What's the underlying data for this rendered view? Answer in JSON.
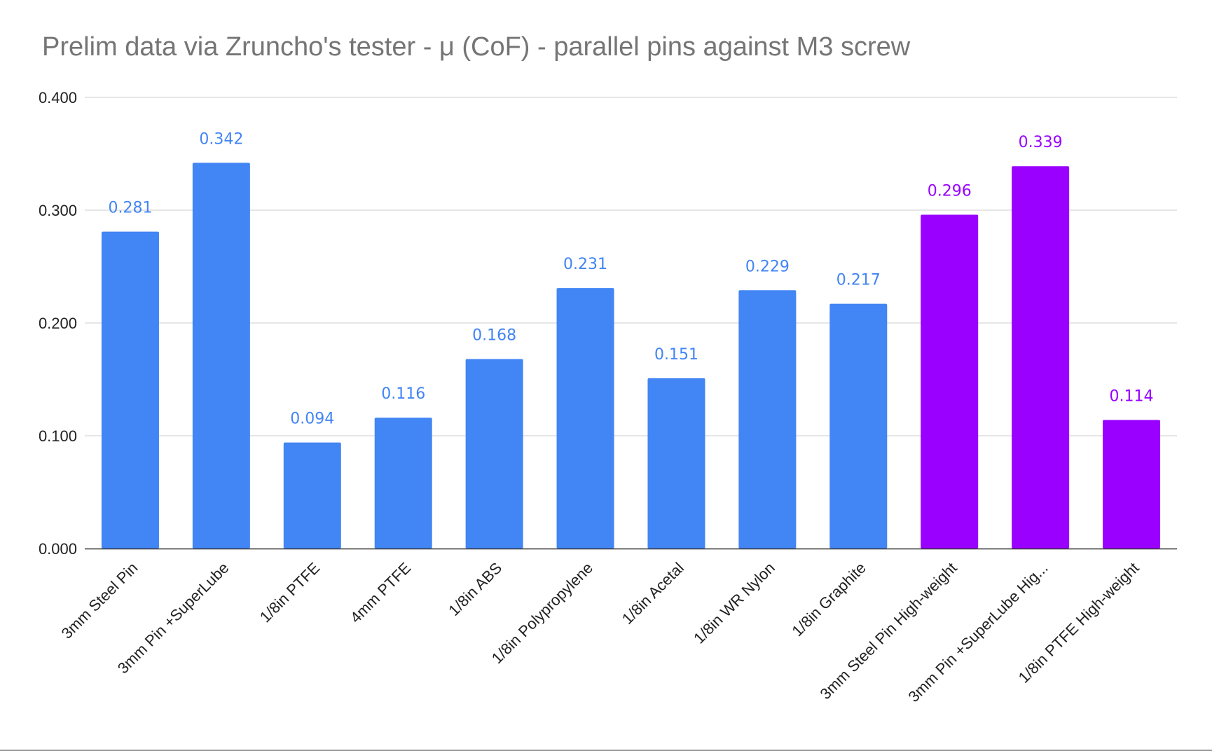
{
  "chart_data": {
    "type": "bar",
    "title": "Prelim data via Zruncho's tester - μ (CoF) - parallel pins against M3 screw",
    "xlabel": "",
    "ylabel": "",
    "ylim": [
      0,
      0.4
    ],
    "yticks": [
      "0.000",
      "0.100",
      "0.200",
      "0.300",
      "0.400"
    ],
    "grid": true,
    "legend": "none",
    "categories": [
      "3mm Steel Pin",
      "3mm Pin +SuperLube",
      "1/8in PTFE",
      "4mm PTFE",
      "1/8in ABS",
      "1/8in Polypropylene",
      "1/8in Acetal",
      "1/8in WR Nylon",
      "1/8in Graphite",
      "3mm Steel Pin High-weight",
      "3mm Pin +SuperLube Hig...",
      "1/8in PTFE High-weight"
    ],
    "values": [
      0.281,
      0.342,
      0.094,
      0.116,
      0.168,
      0.231,
      0.151,
      0.229,
      0.217,
      0.296,
      0.339,
      0.114
    ],
    "value_labels": [
      "0.281",
      "0.342",
      "0.094",
      "0.116",
      "0.168",
      "0.231",
      "0.151",
      "0.229",
      "0.217",
      "0.296",
      "0.339",
      "0.114"
    ],
    "bar_colors": [
      "#4285f4",
      "#4285f4",
      "#4285f4",
      "#4285f4",
      "#4285f4",
      "#4285f4",
      "#4285f4",
      "#4285f4",
      "#4285f4",
      "#9900ff",
      "#9900ff",
      "#9900ff"
    ],
    "label_colors": [
      "#4285f4",
      "#4285f4",
      "#4285f4",
      "#4285f4",
      "#4285f4",
      "#4285f4",
      "#4285f4",
      "#4285f4",
      "#4285f4",
      "#9900ff",
      "#9900ff",
      "#9900ff"
    ]
  }
}
